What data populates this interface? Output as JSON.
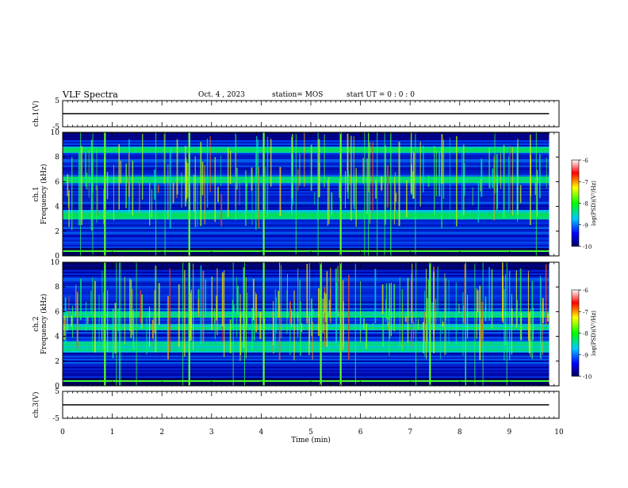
{
  "header": {
    "title": "VLF Spectra",
    "date": "Oct. 4 , 2023",
    "station": "station= MOS",
    "start_time": "start UT =  0 : 0 : 0"
  },
  "chart_data": [
    {
      "type": "line",
      "panel": "ch1-waveform",
      "ylabel": "ch.1(V)",
      "ylim": [
        -5,
        5
      ],
      "yticks": [
        "5",
        "-5"
      ],
      "x": [
        0,
        9.8
      ],
      "y": [
        0,
        0
      ]
    },
    {
      "type": "heatmap",
      "panel": "ch1-spectrogram",
      "ylabel": "ch.1\nFrequency (kHz)",
      "ylim": [
        0,
        10
      ],
      "yticks": [
        "0",
        "2",
        "4",
        "6",
        "8",
        "10"
      ],
      "xlim": [
        0,
        10
      ],
      "data_extent_min": 9.8,
      "colorbar": {
        "label": "log(PSD)(V²/Hz)",
        "ticks": [
          "-6",
          "-7",
          "-8",
          "-9",
          "-10"
        ],
        "range": [
          -10,
          -6
        ]
      },
      "spherics_min": [
        0.85,
        2.55,
        4.05,
        5.6
      ],
      "bright_bands_khz": [
        3.2,
        3.5,
        6.2,
        8.6
      ]
    },
    {
      "type": "heatmap",
      "panel": "ch2-spectrogram",
      "ylabel": "ch.2\nFrequency (kHz)",
      "ylim": [
        0,
        10
      ],
      "yticks": [
        "0",
        "2",
        "4",
        "6",
        "8",
        "10"
      ],
      "xlim": [
        0,
        10
      ],
      "data_extent_min": 9.8,
      "colorbar": {
        "label": "log(PSD)(V²/Hz)",
        "ticks": [
          "-6",
          "-7",
          "-8",
          "-9",
          "-10"
        ],
        "range": [
          -10,
          -6
        ]
      },
      "spherics_min": [
        0.85,
        2.55,
        4.05,
        5.2,
        5.6,
        7.4
      ],
      "bright_bands_khz": [
        3.0,
        3.3,
        4.7,
        5.8
      ]
    },
    {
      "type": "line",
      "panel": "ch3-waveform",
      "ylabel": "ch.3(V)",
      "ylim": [
        -5,
        5
      ],
      "yticks": [
        "5",
        "-5"
      ],
      "x": [
        0,
        9.8
      ],
      "y": [
        0,
        0
      ]
    }
  ],
  "xaxis": {
    "label": "Time (min)",
    "ticks": [
      "0",
      "1",
      "2",
      "3",
      "4",
      "5",
      "6",
      "7",
      "8",
      "9",
      "10"
    ],
    "xlim": [
      0,
      10
    ]
  }
}
